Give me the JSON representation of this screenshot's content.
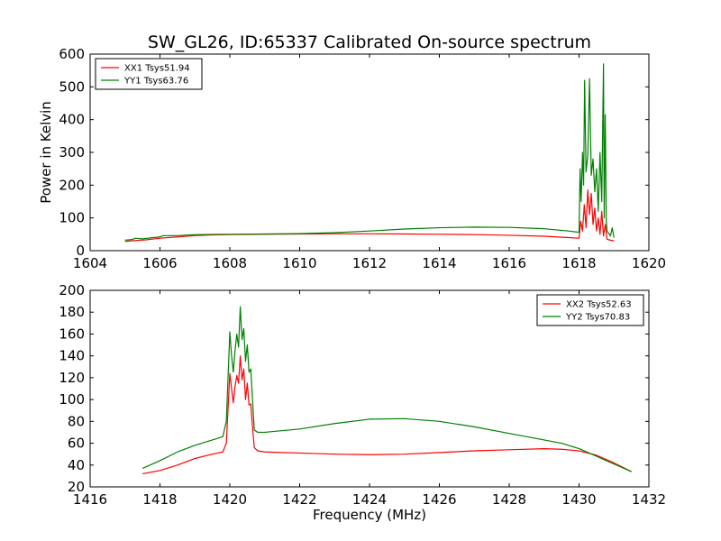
{
  "title": "SW_GL26, ID:65337 Calibrated On-source spectrum",
  "colors": {
    "red": "#ff0000",
    "green": "#008000"
  },
  "chart_data": [
    {
      "type": "line",
      "ylabel": "Power in Kelvin",
      "xlabel": "",
      "xlim": [
        1604,
        1620
      ],
      "ylim": [
        0,
        600
      ],
      "xticks": [
        1604,
        1606,
        1608,
        1610,
        1612,
        1614,
        1616,
        1618,
        1620
      ],
      "yticks": [
        0,
        100,
        200,
        300,
        400,
        500,
        600
      ],
      "legend_position": "top-left",
      "series": [
        {
          "name": "XX1 Tsys51.94",
          "color": "#ff0000",
          "points": [
            [
              1605.0,
              28
            ],
            [
              1605.3,
              31
            ],
            [
              1605.6,
              33
            ],
            [
              1606.0,
              38
            ],
            [
              1606.5,
              42
            ],
            [
              1607.0,
              46
            ],
            [
              1607.5,
              48
            ],
            [
              1608.0,
              49
            ],
            [
              1609.0,
              50
            ],
            [
              1610.0,
              51
            ],
            [
              1611.0,
              51.5
            ],
            [
              1612.0,
              51.5
            ],
            [
              1613.0,
              51
            ],
            [
              1614.0,
              50
            ],
            [
              1615.0,
              49
            ],
            [
              1616.0,
              47
            ],
            [
              1617.0,
              44
            ],
            [
              1617.7,
              40
            ],
            [
              1618.0,
              38
            ],
            [
              1618.05,
              90
            ],
            [
              1618.1,
              60
            ],
            [
              1618.15,
              140
            ],
            [
              1618.2,
              70
            ],
            [
              1618.25,
              185
            ],
            [
              1618.3,
              110
            ],
            [
              1618.35,
              175
            ],
            [
              1618.4,
              80
            ],
            [
              1618.45,
              130
            ],
            [
              1618.5,
              60
            ],
            [
              1618.55,
              100
            ],
            [
              1618.6,
              50
            ],
            [
              1618.65,
              120
            ],
            [
              1618.7,
              45
            ],
            [
              1618.75,
              80
            ],
            [
              1618.8,
              35
            ],
            [
              1618.9,
              32
            ],
            [
              1619.0,
              30
            ]
          ]
        },
        {
          "name": "YY1 Tsys63.76",
          "color": "#008000",
          "points": [
            [
              1605.0,
              32
            ],
            [
              1605.2,
              34
            ],
            [
              1605.3,
              38
            ],
            [
              1605.5,
              36
            ],
            [
              1605.8,
              40
            ],
            [
              1606.0,
              42
            ],
            [
              1606.1,
              46
            ],
            [
              1606.5,
              46
            ],
            [
              1607.0,
              49
            ],
            [
              1608.0,
              50
            ],
            [
              1609.0,
              51
            ],
            [
              1610.0,
              52
            ],
            [
              1611.0,
              55
            ],
            [
              1612.0,
              60
            ],
            [
              1613.0,
              66
            ],
            [
              1614.0,
              70
            ],
            [
              1615.0,
              72
            ],
            [
              1616.0,
              71
            ],
            [
              1617.0,
              67
            ],
            [
              1617.7,
              60
            ],
            [
              1618.0,
              56
            ],
            [
              1618.03,
              250
            ],
            [
              1618.06,
              150
            ],
            [
              1618.1,
              300
            ],
            [
              1618.13,
              200
            ],
            [
              1618.16,
              520
            ],
            [
              1618.2,
              240
            ],
            [
              1618.25,
              290
            ],
            [
              1618.3,
              525
            ],
            [
              1618.35,
              230
            ],
            [
              1618.4,
              280
            ],
            [
              1618.45,
              180
            ],
            [
              1618.5,
              250
            ],
            [
              1618.55,
              120
            ],
            [
              1618.6,
              300
            ],
            [
              1618.65,
              150
            ],
            [
              1618.7,
              570
            ],
            [
              1618.72,
              100
            ],
            [
              1618.75,
              415
            ],
            [
              1618.78,
              90
            ],
            [
              1618.8,
              60
            ],
            [
              1618.9,
              45
            ],
            [
              1618.95,
              70
            ],
            [
              1619.0,
              40
            ]
          ]
        }
      ]
    },
    {
      "type": "line",
      "ylabel": "",
      "xlabel": "Frequency (MHz)",
      "xlim": [
        1416,
        1432
      ],
      "ylim": [
        20,
        200
      ],
      "xticks": [
        1416,
        1418,
        1420,
        1422,
        1424,
        1426,
        1428,
        1430,
        1432
      ],
      "yticks": [
        20,
        40,
        60,
        80,
        100,
        120,
        140,
        160,
        180,
        200
      ],
      "legend_position": "top-right",
      "series": [
        {
          "name": "XX2 Tsys52.63",
          "color": "#ff0000",
          "points": [
            [
              1417.5,
              32
            ],
            [
              1418.0,
              35
            ],
            [
              1418.5,
              40
            ],
            [
              1419.0,
              46
            ],
            [
              1419.5,
              50
            ],
            [
              1419.8,
              52
            ],
            [
              1419.9,
              60
            ],
            [
              1420.0,
              124
            ],
            [
              1420.05,
              110
            ],
            [
              1420.1,
              97
            ],
            [
              1420.15,
              112
            ],
            [
              1420.2,
              122
            ],
            [
              1420.25,
              115
            ],
            [
              1420.3,
              140
            ],
            [
              1420.35,
              118
            ],
            [
              1420.4,
              128
            ],
            [
              1420.45,
              100
            ],
            [
              1420.5,
              115
            ],
            [
              1420.55,
              95
            ],
            [
              1420.6,
              96
            ],
            [
              1420.65,
              75
            ],
            [
              1420.7,
              56
            ],
            [
              1420.8,
              53
            ],
            [
              1421.0,
              52
            ],
            [
              1422.0,
              51
            ],
            [
              1423.0,
              50
            ],
            [
              1424.0,
              49.5
            ],
            [
              1425.0,
              50
            ],
            [
              1426.0,
              51.5
            ],
            [
              1427.0,
              53
            ],
            [
              1428.0,
              54
            ],
            [
              1429.0,
              55
            ],
            [
              1429.5,
              54.5
            ],
            [
              1430.0,
              53
            ],
            [
              1430.5,
              49
            ],
            [
              1431.0,
              42
            ],
            [
              1431.5,
              34
            ]
          ]
        },
        {
          "name": "YY2 Tsys70.83",
          "color": "#008000",
          "points": [
            [
              1417.5,
              37
            ],
            [
              1418.0,
              44
            ],
            [
              1418.5,
              52
            ],
            [
              1419.0,
              58
            ],
            [
              1419.5,
              63
            ],
            [
              1419.8,
              66
            ],
            [
              1419.9,
              80
            ],
            [
              1420.0,
              162
            ],
            [
              1420.05,
              140
            ],
            [
              1420.1,
              125
            ],
            [
              1420.15,
              145
            ],
            [
              1420.2,
              160
            ],
            [
              1420.25,
              148
            ],
            [
              1420.3,
              185
            ],
            [
              1420.35,
              155
            ],
            [
              1420.4,
              165
            ],
            [
              1420.45,
              135
            ],
            [
              1420.5,
              150
            ],
            [
              1420.55,
              125
            ],
            [
              1420.6,
              128
            ],
            [
              1420.65,
              100
            ],
            [
              1420.7,
              72
            ],
            [
              1420.8,
              70
            ],
            [
              1421.0,
              70
            ],
            [
              1422.0,
              73
            ],
            [
              1423.0,
              78
            ],
            [
              1424.0,
              82
            ],
            [
              1425.0,
              82.5
            ],
            [
              1426.0,
              80
            ],
            [
              1427.0,
              75
            ],
            [
              1428.0,
              69
            ],
            [
              1429.0,
              63
            ],
            [
              1429.5,
              60
            ],
            [
              1430.0,
              55
            ],
            [
              1430.5,
              48
            ],
            [
              1431.0,
              41
            ],
            [
              1431.5,
              34
            ]
          ]
        }
      ]
    }
  ]
}
